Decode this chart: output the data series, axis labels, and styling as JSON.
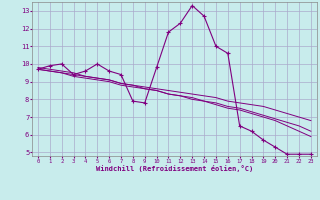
{
  "title": "",
  "xlabel": "Windchill (Refroidissement éolien,°C)",
  "ylabel": "",
  "bg_color": "#c8ecec",
  "line_color": "#800080",
  "grid_color": "#aaaacc",
  "x_data": [
    0,
    1,
    2,
    3,
    4,
    5,
    6,
    7,
    8,
    9,
    10,
    11,
    12,
    13,
    14,
    15,
    16,
    17,
    18,
    19,
    20,
    21,
    22,
    23
  ],
  "y_main": [
    9.7,
    9.9,
    10.0,
    9.4,
    9.6,
    10.0,
    9.6,
    9.4,
    7.9,
    7.8,
    9.8,
    11.8,
    12.3,
    13.3,
    12.7,
    11.0,
    10.6,
    6.5,
    6.2,
    5.7,
    5.3,
    4.9,
    4.9,
    4.9
  ],
  "y_line1": [
    9.7,
    9.6,
    9.5,
    9.4,
    9.3,
    9.2,
    9.1,
    8.9,
    8.8,
    8.7,
    8.6,
    8.5,
    8.4,
    8.3,
    8.2,
    8.1,
    7.9,
    7.8,
    7.7,
    7.6,
    7.4,
    7.2,
    7.0,
    6.8
  ],
  "y_line2": [
    9.7,
    9.6,
    9.5,
    9.3,
    9.2,
    9.1,
    9.0,
    8.8,
    8.7,
    8.6,
    8.5,
    8.3,
    8.2,
    8.1,
    7.9,
    7.8,
    7.6,
    7.5,
    7.3,
    7.1,
    6.9,
    6.7,
    6.5,
    6.2
  ],
  "y_line3": [
    9.8,
    9.7,
    9.6,
    9.5,
    9.3,
    9.2,
    9.1,
    8.9,
    8.8,
    8.6,
    8.5,
    8.3,
    8.2,
    8.0,
    7.9,
    7.7,
    7.5,
    7.4,
    7.2,
    7.0,
    6.8,
    6.5,
    6.2,
    5.9
  ],
  "ylim": [
    4.8,
    13.5
  ],
  "yticks": [
    5,
    6,
    7,
    8,
    9,
    10,
    11,
    12,
    13
  ],
  "xlim": [
    -0.5,
    23.5
  ],
  "xticks": [
    0,
    1,
    2,
    3,
    4,
    5,
    6,
    7,
    8,
    9,
    10,
    11,
    12,
    13,
    14,
    15,
    16,
    17,
    18,
    19,
    20,
    21,
    22,
    23
  ]
}
